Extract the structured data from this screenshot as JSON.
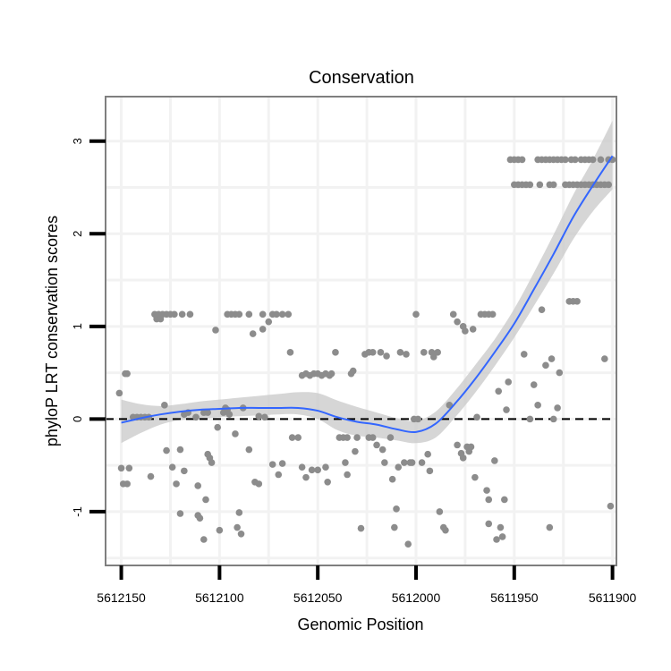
{
  "chart_data": {
    "type": "scatter",
    "title": "Conservation",
    "xlabel": "Genomic Position",
    "ylabel": "phyloP LRT conservation scores",
    "x_reversed": true,
    "xlim": [
      5612158,
      5611898
    ],
    "ylim": [
      -1.58,
      3.48
    ],
    "x_ticks": [
      5612150,
      5612100,
      5612050,
      5612000,
      5611950,
      5611900
    ],
    "x_tick_labels": [
      "5612150",
      "5612100",
      "5612050",
      "5612000",
      "5611950",
      "5611900"
    ],
    "y_ticks": [
      -1,
      0,
      1,
      2,
      3
    ],
    "y_tick_labels": [
      "-1",
      "0",
      "1",
      "2",
      "3"
    ],
    "reference_line": {
      "y": 0,
      "style": "dashed"
    },
    "points": [
      [
        5612151,
        0.28
      ],
      [
        5612148,
        0.49
      ],
      [
        5612147,
        0.49
      ],
      [
        5612150,
        -0.53
      ],
      [
        5612149,
        -0.7
      ],
      [
        5612147,
        -0.7
      ],
      [
        5612146,
        -0.53
      ],
      [
        5612144,
        0.02
      ],
      [
        5612142,
        0.02
      ],
      [
        5612140,
        0.02
      ],
      [
        5612138,
        0.02
      ],
      [
        5612136,
        0.02
      ],
      [
        5612133,
        1.13
      ],
      [
        5612131,
        1.13
      ],
      [
        5612129,
        1.13
      ],
      [
        5612132,
        1.08
      ],
      [
        5612130,
        1.08
      ],
      [
        5612127,
        1.13
      ],
      [
        5612125,
        1.13
      ],
      [
        5612123,
        1.13
      ],
      [
        5612119,
        1.13
      ],
      [
        5612115,
        1.13
      ],
      [
        5612135,
        -0.62
      ],
      [
        5612128,
        0.15
      ],
      [
        5612127,
        -0.34
      ],
      [
        5612124,
        -0.52
      ],
      [
        5612122,
        -0.7
      ],
      [
        5612120,
        -1.02
      ],
      [
        5612120,
        -0.33
      ],
      [
        5612118,
        -0.56
      ],
      [
        5612118,
        0.05
      ],
      [
        5612116,
        0.07
      ],
      [
        5612112,
        0.02
      ],
      [
        5612111,
        -0.72
      ],
      [
        5612111,
        -1.04
      ],
      [
        5612110,
        -1.07
      ],
      [
        5612108,
        -1.3
      ],
      [
        5612107,
        -0.87
      ],
      [
        5612106,
        -0.38
      ],
      [
        5612105,
        -0.42
      ],
      [
        5612104,
        -0.47
      ],
      [
        5612106,
        0.07
      ],
      [
        5612108,
        0.07
      ],
      [
        5612102,
        0.96
      ],
      [
        5612101,
        -0.09
      ],
      [
        5612100,
        -1.2
      ],
      [
        5612098,
        0.07
      ],
      [
        5612097,
        0.12
      ],
      [
        5612096,
        0.1
      ],
      [
        5612095,
        0.05
      ],
      [
        5612092,
        -0.16
      ],
      [
        5612091,
        -1.17
      ],
      [
        5612090,
        -1.01
      ],
      [
        5612089,
        -1.24
      ],
      [
        5612088,
        0.12
      ],
      [
        5612096,
        1.13
      ],
      [
        5612094,
        1.13
      ],
      [
        5612092,
        1.13
      ],
      [
        5612090,
        1.13
      ],
      [
        5612085,
        1.13
      ],
      [
        5612083,
        0.92
      ],
      [
        5612082,
        -0.68
      ],
      [
        5612080,
        -0.7
      ],
      [
        5612080,
        0.03
      ],
      [
        5612078,
        1.13
      ],
      [
        5612078,
        0.97
      ],
      [
        5612077,
        0.02
      ],
      [
        5612085,
        -0.33
      ],
      [
        5612075,
        1.05
      ],
      [
        5612073,
        1.13
      ],
      [
        5612071,
        1.13
      ],
      [
        5612068,
        1.13
      ],
      [
        5612065,
        1.13
      ],
      [
        5612073,
        -0.49
      ],
      [
        5612070,
        -0.6
      ],
      [
        5612068,
        -0.48
      ],
      [
        5612064,
        0.72
      ],
      [
        5612063,
        -0.2
      ],
      [
        5612060,
        -0.2
      ],
      [
        5612058,
        -0.52
      ],
      [
        5612058,
        0.47
      ],
      [
        5612056,
        0.49
      ],
      [
        5612054,
        0.47
      ],
      [
        5612052,
        0.49
      ],
      [
        5612050,
        0.49
      ],
      [
        5612048,
        0.47
      ],
      [
        5612046,
        0.49
      ],
      [
        5612044,
        0.47
      ],
      [
        5612043,
        0.49
      ],
      [
        5612056,
        -0.63
      ],
      [
        5612053,
        -0.55
      ],
      [
        5612050,
        -0.55
      ],
      [
        5612046,
        -0.52
      ],
      [
        5612045,
        -0.68
      ],
      [
        5612041,
        0.72
      ],
      [
        5612039,
        -0.2
      ],
      [
        5612037,
        -0.2
      ],
      [
        5612035,
        -0.2
      ],
      [
        5612036,
        -0.47
      ],
      [
        5612035,
        -0.6
      ],
      [
        5612033,
        0.49
      ],
      [
        5612032,
        0.52
      ],
      [
        5612031,
        -0.35
      ],
      [
        5612030,
        -0.2
      ],
      [
        5612028,
        -1.18
      ],
      [
        5612026,
        0.7
      ],
      [
        5612024,
        0.72
      ],
      [
        5612022,
        0.72
      ],
      [
        5612024,
        -0.2
      ],
      [
        5612022,
        -0.2
      ],
      [
        5612020,
        -0.28
      ],
      [
        5612018,
        0.72
      ],
      [
        5612017,
        -0.33
      ],
      [
        5612016,
        -0.47
      ],
      [
        5612015,
        0.68
      ],
      [
        5612013,
        -0.2
      ],
      [
        5612012,
        -0.65
      ],
      [
        5612011,
        -1.17
      ],
      [
        5612010,
        -0.97
      ],
      [
        5612009,
        -0.52
      ],
      [
        5612008,
        0.72
      ],
      [
        5612006,
        -0.47
      ],
      [
        5612005,
        0.7
      ],
      [
        5612004,
        -1.35
      ],
      [
        5612003,
        -0.47
      ],
      [
        5612002,
        -0.47
      ],
      [
        5612001,
        0.0
      ],
      [
        5612000,
        1.13
      ],
      [
        5611999,
        0.0
      ],
      [
        5611997,
        -0.47
      ],
      [
        5611996,
        0.72
      ],
      [
        5611994,
        -0.38
      ],
      [
        5611993,
        -0.56
      ],
      [
        5611992,
        0.72
      ],
      [
        5611991,
        0.67
      ],
      [
        5611989,
        0.72
      ],
      [
        5611988,
        -1.0
      ],
      [
        5611986,
        -1.17
      ],
      [
        5611985,
        -1.2
      ],
      [
        5611983,
        0.15
      ],
      [
        5611981,
        1.13
      ],
      [
        5611979,
        -0.28
      ],
      [
        5611979,
        1.05
      ],
      [
        5611977,
        -0.37
      ],
      [
        5611976,
        -0.42
      ],
      [
        5611976,
        1.0
      ],
      [
        5611975,
        0.95
      ],
      [
        5611974,
        -0.3
      ],
      [
        5611973,
        -0.35
      ],
      [
        5611972,
        -0.3
      ],
      [
        5611971,
        0.97
      ],
      [
        5611970,
        -0.63
      ],
      [
        5611969,
        0.02
      ],
      [
        5611967,
        1.13
      ],
      [
        5611965,
        1.13
      ],
      [
        5611963,
        1.13
      ],
      [
        5611964,
        -0.77
      ],
      [
        5611963,
        -0.87
      ],
      [
        5611963,
        -1.13
      ],
      [
        5611961,
        1.13
      ],
      [
        5611960,
        -0.45
      ],
      [
        5611959,
        -1.3
      ],
      [
        5611958,
        0.3
      ],
      [
        5611957,
        -1.17
      ],
      [
        5611956,
        -1.27
      ],
      [
        5611955,
        -0.87
      ],
      [
        5611954,
        0.1
      ],
      [
        5611953,
        0.4
      ],
      [
        5611952,
        2.8
      ],
      [
        5611950,
        2.8
      ],
      [
        5611948,
        2.8
      ],
      [
        5611946,
        2.8
      ],
      [
        5611950,
        2.53
      ],
      [
        5611948,
        2.53
      ],
      [
        5611946,
        2.53
      ],
      [
        5611944,
        2.53
      ],
      [
        5611942,
        2.53
      ],
      [
        5611945,
        0.7
      ],
      [
        5611942,
        0.0
      ],
      [
        5611940,
        0.37
      ],
      [
        5611938,
        0.15
      ],
      [
        5611938,
        2.8
      ],
      [
        5611936,
        2.8
      ],
      [
        5611934,
        2.8
      ],
      [
        5611932,
        2.8
      ],
      [
        5611930,
        2.8
      ],
      [
        5611928,
        2.8
      ],
      [
        5611926,
        2.8
      ],
      [
        5611924,
        2.8
      ],
      [
        5611921,
        2.8
      ],
      [
        5611919,
        2.8
      ],
      [
        5611937,
        2.53
      ],
      [
        5611932,
        2.53
      ],
      [
        5611930,
        2.53
      ],
      [
        5611936,
        1.18
      ],
      [
        5611934,
        0.58
      ],
      [
        5611932,
        -1.17
      ],
      [
        5611931,
        0.65
      ],
      [
        5611930,
        0.0
      ],
      [
        5611928,
        0.12
      ],
      [
        5611927,
        0.5
      ],
      [
        5611924,
        2.53
      ],
      [
        5611922,
        2.53
      ],
      [
        5611920,
        2.53
      ],
      [
        5611918,
        2.53
      ],
      [
        5611916,
        2.53
      ],
      [
        5611914,
        2.53
      ],
      [
        5611912,
        2.53
      ],
      [
        5611910,
        2.53
      ],
      [
        5611908,
        2.53
      ],
      [
        5611906,
        2.53
      ],
      [
        5611904,
        2.53
      ],
      [
        5611902,
        2.53
      ],
      [
        5611922,
        1.27
      ],
      [
        5611920,
        1.27
      ],
      [
        5611918,
        1.27
      ],
      [
        5611916,
        2.8
      ],
      [
        5611914,
        2.8
      ],
      [
        5611912,
        2.8
      ],
      [
        5611910,
        2.8
      ],
      [
        5611906,
        2.8
      ],
      [
        5611902,
        2.8
      ],
      [
        5611900,
        2.8
      ],
      [
        5611904,
        0.65
      ],
      [
        5611901,
        -0.94
      ]
    ],
    "smooth": {
      "x": [
        5612150,
        5612140,
        5612130,
        5612120,
        5612110,
        5612100,
        5612090,
        5612080,
        5612070,
        5612060,
        5612050,
        5612040,
        5612030,
        5612020,
        5612010,
        5612000,
        5611990,
        5611980,
        5611970,
        5611960,
        5611950,
        5611940,
        5611930,
        5611920,
        5611910,
        5611900
      ],
      "y": [
        -0.04,
        0.01,
        0.05,
        0.08,
        0.1,
        0.11,
        0.12,
        0.12,
        0.12,
        0.12,
        0.09,
        0.02,
        -0.03,
        -0.06,
        -0.11,
        -0.14,
        -0.05,
        0.17,
        0.43,
        0.72,
        1.03,
        1.4,
        1.78,
        2.18,
        2.52,
        2.84
      ],
      "lower": [
        -0.26,
        -0.15,
        -0.06,
        -0.01,
        0.0,
        0.02,
        0.03,
        0.04,
        0.05,
        0.05,
        0.0,
        -0.12,
        -0.18,
        -0.2,
        -0.23,
        -0.26,
        -0.2,
        0.02,
        0.28,
        0.57,
        0.88,
        1.22,
        1.57,
        1.94,
        2.24,
        2.48
      ],
      "upper": [
        0.21,
        0.16,
        0.14,
        0.16,
        0.19,
        0.21,
        0.23,
        0.25,
        0.27,
        0.29,
        0.28,
        0.2,
        0.13,
        0.07,
        0.01,
        -0.02,
        0.08,
        0.31,
        0.58,
        0.86,
        1.19,
        1.58,
        1.99,
        2.42,
        2.8,
        3.22
      ]
    },
    "colors": {
      "points": "#8c8c8c",
      "line": "#3366ff",
      "band": "#c8c8c8",
      "panel_border": "#7f7f7f",
      "grid": "#f2f2f2",
      "reference_line": "#000000"
    }
  }
}
